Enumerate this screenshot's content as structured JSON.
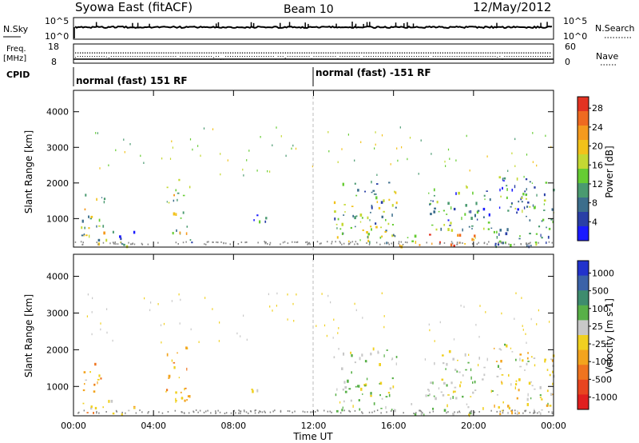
{
  "header": {
    "station": "Syowa East (fitACF)",
    "beam": "Beam 10",
    "date": "12/May/2012"
  },
  "status": {
    "nsky_label": "N.Sky",
    "nsky_ticks": [
      "10^5",
      "10^0"
    ],
    "nsearch_label": "N.Search",
    "nsearch_ticks": [
      "10^5",
      "10^0"
    ],
    "freq_label_1": "Freq.",
    "freq_label_2": "[MHz]",
    "freq_ticks": [
      "18",
      "8"
    ],
    "nave_label": "Nave",
    "nave_ticks": [
      "60",
      "0"
    ],
    "cpid_label": "CPID",
    "cpid_segments": [
      {
        "label": "normal (fast) 151 RF",
        "start_hour": 0
      },
      {
        "label": "normal (fast) -151 RF",
        "start_hour": 12
      }
    ]
  },
  "axes": {
    "time_label": "Time UT",
    "time_ticks": [
      "00:00",
      "04:00",
      "08:00",
      "12:00",
      "16:00",
      "20:00",
      "00:00"
    ],
    "range_label": "Slant Range [km]",
    "range_ticks": [
      "1000",
      "2000",
      "3000",
      "4000"
    ]
  },
  "colorbars": {
    "power": {
      "label": "Power [dB]",
      "ticks": [
        "4",
        "8",
        "12",
        "16",
        "20",
        "24",
        "28"
      ],
      "colors": [
        "#1a1aff",
        "#2a3fa6",
        "#3c6e8c",
        "#4a9a70",
        "#66cc33",
        "#c4d832",
        "#f2c21a",
        "#f59a1e",
        "#ef6a20",
        "#e33322"
      ]
    },
    "velocity": {
      "label": "Velocity [m s-1]",
      "ticks": [
        "1000",
        "500",
        "100",
        "25",
        "-25",
        "-100",
        "-500",
        "-1000"
      ],
      "colors": [
        "#2233cc",
        "#3b62a8",
        "#3e8c6e",
        "#58b048",
        "#c8c8c8",
        "#f0d020",
        "#f3a41e",
        "#ef7420",
        "#e84520",
        "#e01f1f"
      ]
    }
  },
  "chart_data": [
    {
      "type": "heatmap",
      "name": "power",
      "xlabel": "Time UT",
      "ylabel": "Slant Range [km]",
      "xlim": [
        0,
        24
      ],
      "ylim": [
        200,
        4600
      ],
      "colorbar": "Power [dB]",
      "clim": [
        0,
        30
      ],
      "echo_regions": [
        {
          "t": [
            0.35,
            1.6
          ],
          "r": [
            300,
            1700
          ],
          "value": 14
        },
        {
          "t": [
            1.6,
            3.0
          ],
          "r": [
            250,
            700
          ],
          "value": 10
        },
        {
          "t": [
            4.6,
            5.8
          ],
          "r": [
            600,
            2200
          ],
          "value": 16
        },
        {
          "t": [
            5.8,
            6.2
          ],
          "r": [
            250,
            500
          ],
          "value": 8
        },
        {
          "t": [
            8.6,
            9.6
          ],
          "r": [
            900,
            1200
          ],
          "value": 6
        },
        {
          "t": [
            13.0,
            16.2
          ],
          "r": [
            350,
            2100
          ],
          "value": 13
        },
        {
          "t": [
            16.2,
            20.5
          ],
          "r": [
            250,
            600
          ],
          "value": 22
        },
        {
          "t": [
            17.5,
            21.0
          ],
          "r": [
            700,
            2000
          ],
          "value": 10
        },
        {
          "t": [
            21.0,
            24.0
          ],
          "r": [
            250,
            2200
          ],
          "value": 9
        }
      ]
    },
    {
      "type": "heatmap",
      "name": "velocity",
      "xlabel": "Time UT",
      "ylabel": "Slant Range [km]",
      "xlim": [
        0,
        24
      ],
      "ylim": [
        200,
        4600
      ],
      "colorbar": "Velocity [m s-1]",
      "clim": [
        -1000,
        1000
      ],
      "echo_regions": [
        {
          "t": [
            0.35,
            1.6
          ],
          "r": [
            300,
            1700
          ],
          "value": -200
        },
        {
          "t": [
            1.6,
            3.0
          ],
          "r": [
            250,
            700
          ],
          "value": -60
        },
        {
          "t": [
            4.6,
            5.8
          ],
          "r": [
            600,
            2200
          ],
          "value": -300
        },
        {
          "t": [
            5.8,
            6.2
          ],
          "r": [
            250,
            500
          ],
          "value": -40
        },
        {
          "t": [
            8.6,
            9.6
          ],
          "r": [
            900,
            1200
          ],
          "value": -20
        },
        {
          "t": [
            13.0,
            16.2
          ],
          "r": [
            350,
            2100
          ],
          "value": 150
        },
        {
          "t": [
            16.2,
            20.5
          ],
          "r": [
            250,
            600
          ],
          "value": 120
        },
        {
          "t": [
            17.5,
            21.0
          ],
          "r": [
            700,
            2000
          ],
          "value": 80
        },
        {
          "t": [
            21.0,
            24.0
          ],
          "r": [
            250,
            2200
          ],
          "value": -30
        }
      ]
    }
  ]
}
